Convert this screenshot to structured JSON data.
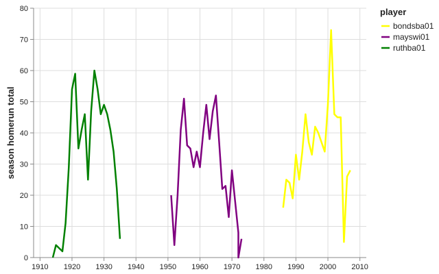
{
  "chart_data": {
    "type": "line",
    "title": "",
    "xlabel": "",
    "ylabel": "season homerun total",
    "xlim": [
      1908,
      2012
    ],
    "ylim": [
      0,
      80
    ],
    "x_ticks": [
      1910,
      1920,
      1930,
      1940,
      1950,
      1960,
      1970,
      1980,
      1990,
      2000,
      2010
    ],
    "y_ticks": [
      0,
      10,
      20,
      30,
      40,
      50,
      60,
      70,
      80
    ],
    "grid": true,
    "legend": {
      "title": "player",
      "placement": "right"
    },
    "series": [
      {
        "name": "bondsba01",
        "color": "#ffff00",
        "x": [
          1986,
          1987,
          1988,
          1989,
          1990,
          1991,
          1992,
          1993,
          1994,
          1995,
          1996,
          1997,
          1998,
          1999,
          2000,
          2001,
          2002,
          2003,
          2004,
          2005,
          2006,
          2007
        ],
        "y": [
          16,
          25,
          24,
          19,
          33,
          25,
          34,
          46,
          37,
          33,
          42,
          40,
          37,
          34,
          49,
          73,
          46,
          45,
          45,
          5,
          26,
          28
        ]
      },
      {
        "name": "mayswi01",
        "color": "#800080",
        "x": [
          1951,
          1952,
          1953,
          1954,
          1955,
          1956,
          1957,
          1958,
          1959,
          1960,
          1961,
          1962,
          1963,
          1964,
          1965,
          1966,
          1967,
          1968,
          1969,
          1970,
          1971,
          1972,
          1972,
          1973
        ],
        "y": [
          20,
          4,
          20,
          41,
          51,
          36,
          35,
          29,
          34,
          29,
          40,
          49,
          38,
          47,
          52,
          37,
          22,
          23,
          13,
          28,
          18,
          8,
          0,
          6
        ]
      },
      {
        "name": "ruthba01",
        "color": "#008000",
        "x": [
          1914,
          1915,
          1916,
          1917,
          1918,
          1919,
          1920,
          1921,
          1922,
          1923,
          1924,
          1925,
          1926,
          1927,
          1928,
          1929,
          1930,
          1931,
          1932,
          1933,
          1934,
          1935
        ],
        "y": [
          0,
          4,
          3,
          2,
          11,
          29,
          54,
          59,
          35,
          41,
          46,
          25,
          47,
          60,
          54,
          46,
          49,
          46,
          41,
          34,
          22,
          6
        ]
      }
    ]
  }
}
